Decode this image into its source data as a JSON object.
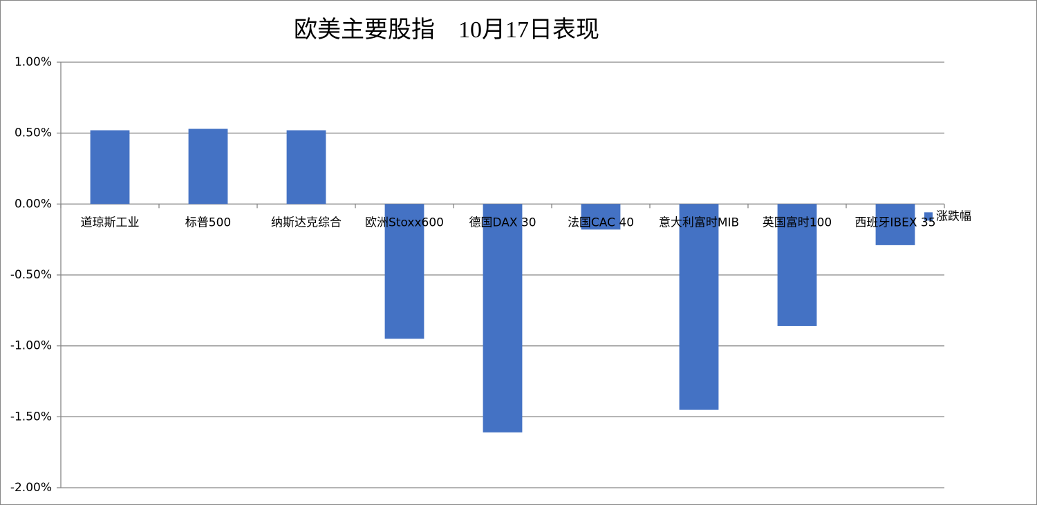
{
  "chart_data": {
    "type": "bar",
    "title": "欧美主要股指　10月17日表现",
    "categories": [
      "道琼斯工业",
      "标普500",
      "纳斯达克综合",
      "欧洲Stoxx600",
      "德国DAX 30",
      "法国CAC 40",
      "意大利富时MIB",
      "英国富时100",
      "西班牙IBEX 35"
    ],
    "series": [
      {
        "name": "涨跌幅",
        "color": "#4472c4",
        "values": [
          0.52,
          0.53,
          0.52,
          -0.95,
          -1.61,
          -0.18,
          -1.45,
          -0.86,
          -0.29
        ]
      }
    ],
    "ylim": [
      -2,
      1
    ],
    "yticks": [
      {
        "value": -2,
        "label": "-2.00%"
      },
      {
        "value": -1.5,
        "label": "-1.50%"
      },
      {
        "value": -1,
        "label": "-1.00%"
      },
      {
        "value": -0.5,
        "label": "-0.50%"
      },
      {
        "value": 0,
        "label": "0.00%"
      },
      {
        "value": 0.5,
        "label": "0.50%"
      },
      {
        "value": 1,
        "label": "1.00%"
      }
    ],
    "grid": true,
    "legend": "right"
  }
}
